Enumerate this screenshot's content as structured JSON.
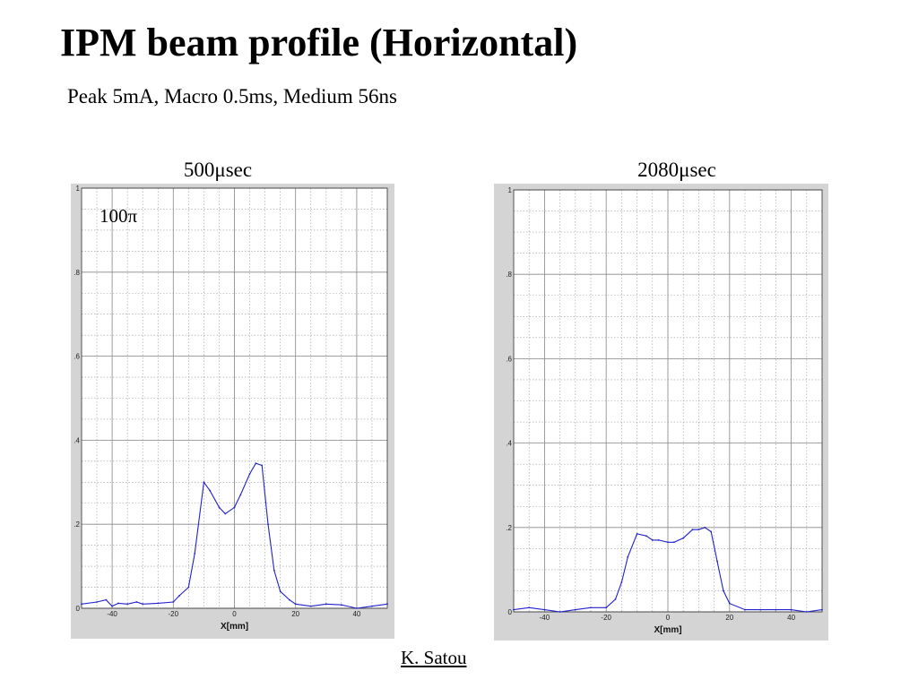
{
  "slide": {
    "title": "IPM beam profile (Horizontal)",
    "subtitle": "Peak 5mA, Macro 0.5ms, Medium 56ns",
    "author": "K. Satou"
  },
  "chart_data": [
    {
      "type": "line",
      "title": "500μsec",
      "xlabel": "X[mm]",
      "ylabel": "",
      "xlim": [
        -50,
        50
      ],
      "ylim": [
        0,
        1
      ],
      "xticks": [
        "-40",
        "-20",
        "0",
        "20",
        "40"
      ],
      "yticks": [
        "0",
        ".2",
        ".4",
        ".6",
        ".8",
        "1"
      ],
      "grid": true,
      "annotation": "100π",
      "line_color": "#2222cc",
      "series": [
        {
          "x": [
            -50,
            -45,
            -42,
            -40,
            -38,
            -35,
            -32,
            -30,
            -25,
            -20,
            -18,
            -15,
            -13,
            -10,
            -8,
            -5,
            -3,
            0,
            2,
            5,
            7,
            9,
            11,
            13,
            15,
            18,
            20,
            25,
            30,
            35,
            40,
            45,
            50
          ],
          "y": [
            0.01,
            0.015,
            0.02,
            0.005,
            0.012,
            0.01,
            0.015,
            0.01,
            0.012,
            0.015,
            0.03,
            0.05,
            0.13,
            0.3,
            0.28,
            0.24,
            0.225,
            0.24,
            0.27,
            0.32,
            0.345,
            0.34,
            0.2,
            0.09,
            0.04,
            0.02,
            0.01,
            0.005,
            0.01,
            0.008,
            0,
            0.005,
            0.01
          ]
        }
      ]
    },
    {
      "type": "line",
      "title": "2080μsec",
      "xlabel": "X[mm]",
      "ylabel": "",
      "xlim": [
        -50,
        50
      ],
      "ylim": [
        0,
        1
      ],
      "xticks": [
        "-40",
        "-20",
        "0",
        "20",
        "40"
      ],
      "yticks": [
        "0",
        ".2",
        ".4",
        ".6",
        ".8",
        "1"
      ],
      "grid": true,
      "line_color": "#2222cc",
      "series": [
        {
          "x": [
            -50,
            -45,
            -40,
            -35,
            -30,
            -25,
            -20,
            -17,
            -15,
            -13,
            -10,
            -7,
            -5,
            -3,
            0,
            2,
            5,
            8,
            10,
            12,
            14,
            16,
            18,
            20,
            25,
            30,
            35,
            40,
            45,
            50
          ],
          "y": [
            0.005,
            0.01,
            0.005,
            0,
            0.005,
            0.01,
            0.01,
            0.03,
            0.07,
            0.13,
            0.185,
            0.18,
            0.17,
            0.17,
            0.165,
            0.165,
            0.175,
            0.195,
            0.195,
            0.2,
            0.19,
            0.12,
            0.05,
            0.02,
            0.005,
            0.005,
            0.005,
            0.005,
            0,
            0.005
          ]
        }
      ]
    }
  ]
}
